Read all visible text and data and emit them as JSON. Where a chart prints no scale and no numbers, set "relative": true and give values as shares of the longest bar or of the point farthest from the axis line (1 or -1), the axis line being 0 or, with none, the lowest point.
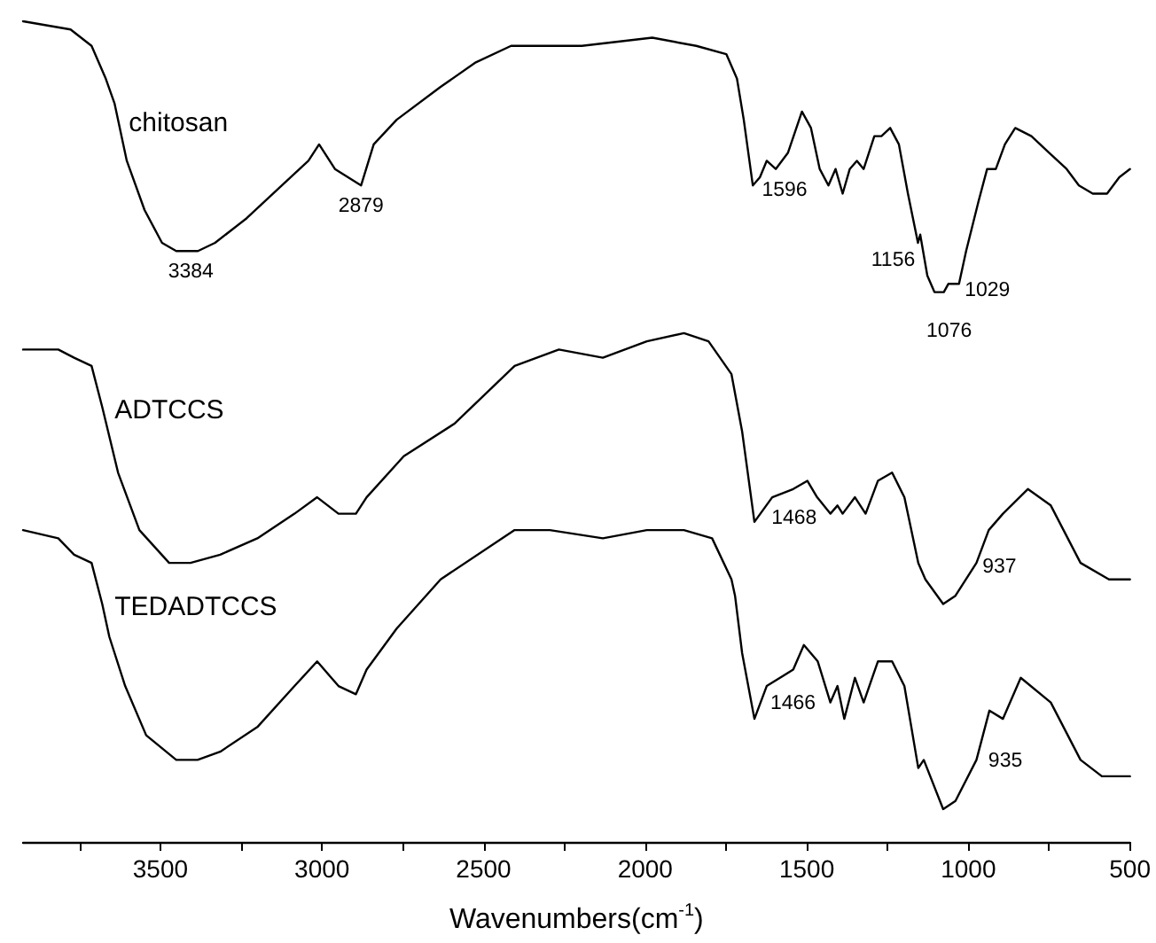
{
  "chart_data": {
    "type": "line",
    "relative": true,
    "xlabel": "Wavenumbers(cm$^{-1}$)",
    "xlim": [
      3925,
      500
    ],
    "xticks": [
      {
        "value": 3750,
        "label": null
      },
      3500,
      {
        "value": 3250,
        "label": null
      },
      3000,
      {
        "value": 2750,
        "label": null
      },
      2500,
      {
        "value": 2250,
        "label": null
      },
      2000,
      {
        "value": 1750,
        "label": null
      },
      1500,
      {
        "value": 1250,
        "label": null
      },
      1000,
      {
        "value": 750,
        "label": null
      },
      500
    ],
    "legend": false,
    "grid": false,
    "marker": "none",
    "line_style": "solid",
    "series": [
      {
        "name": "chitosan",
        "color": "#000000",
        "x": [
          3925,
          3778,
          3713,
          3669,
          3642,
          3604,
          3549,
          3495,
          3451,
          3384,
          3331,
          3233,
          3124,
          3042,
          3009,
          2960,
          2879,
          2840,
          2769,
          2633,
          2524,
          2415,
          2196,
          1978,
          1842,
          1749,
          1716,
          1695,
          1667,
          1645,
          1624,
          1596,
          1558,
          1515,
          1487,
          1460,
          1433,
          1411,
          1389,
          1367,
          1345,
          1324,
          1291,
          1269,
          1242,
          1215,
          1187,
          1156,
          1149,
          1127,
          1105,
          1076,
          1062,
          1029,
          1007,
          969,
          942,
          915,
          887,
          855,
          805,
          751,
          696,
          658,
          615,
          571,
          533,
          500
        ],
        "values": [
          1.0,
          0.99,
          0.97,
          0.93,
          0.9,
          0.83,
          0.77,
          0.73,
          0.72,
          0.72,
          0.73,
          0.76,
          0.8,
          0.83,
          0.85,
          0.82,
          0.8,
          0.85,
          0.88,
          0.92,
          0.95,
          0.97,
          0.97,
          0.98,
          0.97,
          0.96,
          0.93,
          0.88,
          0.8,
          0.81,
          0.83,
          0.82,
          0.84,
          0.89,
          0.87,
          0.82,
          0.8,
          0.82,
          0.79,
          0.82,
          0.83,
          0.82,
          0.86,
          0.86,
          0.87,
          0.85,
          0.79,
          0.73,
          0.74,
          0.69,
          0.67,
          0.67,
          0.68,
          0.68,
          0.72,
          0.78,
          0.82,
          0.82,
          0.85,
          0.87,
          0.86,
          0.84,
          0.82,
          0.8,
          0.79,
          0.79,
          0.81,
          0.82
        ]
      },
      {
        "name": "ADTCCS",
        "color": "#000000",
        "x": [
          3925,
          3816,
          3767,
          3713,
          3680,
          3631,
          3565,
          3473,
          3407,
          3315,
          3200,
          3085,
          3015,
          2949,
          2895,
          2862,
          2747,
          2589,
          2404,
          2267,
          2131,
          1995,
          1880,
          1804,
          1733,
          1700,
          1662,
          1607,
          1542,
          1498,
          1468,
          1427,
          1405,
          1389,
          1351,
          1318,
          1280,
          1236,
          1198,
          1155,
          1133,
          1078,
          1040,
          975,
          937,
          893,
          816,
          745,
          653,
          565,
          500
        ],
        "values": [
          0.6,
          0.6,
          0.59,
          0.58,
          0.53,
          0.45,
          0.38,
          0.34,
          0.34,
          0.35,
          0.37,
          0.4,
          0.42,
          0.4,
          0.4,
          0.42,
          0.47,
          0.51,
          0.58,
          0.6,
          0.59,
          0.61,
          0.62,
          0.61,
          0.57,
          0.5,
          0.39,
          0.42,
          0.43,
          0.44,
          0.42,
          0.4,
          0.41,
          0.4,
          0.42,
          0.4,
          0.44,
          0.45,
          0.42,
          0.34,
          0.32,
          0.29,
          0.3,
          0.34,
          0.38,
          0.4,
          0.43,
          0.41,
          0.34,
          0.32,
          0.32
        ]
      },
      {
        "name": "TEDADTCCS",
        "color": "#000000",
        "x": [
          3925,
          3816,
          3767,
          3713,
          3680,
          3658,
          3609,
          3544,
          3451,
          3385,
          3315,
          3200,
          3085,
          3015,
          2949,
          2895,
          2862,
          2769,
          2633,
          2404,
          2295,
          2131,
          1995,
          1880,
          1793,
          1733,
          1722,
          1700,
          1662,
          1624,
          1542,
          1509,
          1466,
          1427,
          1405,
          1384,
          1351,
          1324,
          1280,
          1236,
          1198,
          1155,
          1138,
          1078,
          1040,
          975,
          935,
          893,
          838,
          745,
          653,
          587,
          500
        ],
        "values": [
          0.38,
          0.37,
          0.35,
          0.34,
          0.29,
          0.25,
          0.19,
          0.13,
          0.1,
          0.1,
          0.11,
          0.14,
          0.19,
          0.22,
          0.19,
          0.18,
          0.21,
          0.26,
          0.32,
          0.38,
          0.38,
          0.37,
          0.38,
          0.38,
          0.37,
          0.32,
          0.3,
          0.23,
          0.15,
          0.19,
          0.21,
          0.24,
          0.22,
          0.17,
          0.19,
          0.15,
          0.2,
          0.17,
          0.22,
          0.22,
          0.19,
          0.09,
          0.1,
          0.04,
          0.05,
          0.1,
          0.16,
          0.15,
          0.2,
          0.17,
          0.1,
          0.08,
          0.08
        ]
      }
    ],
    "annotations": [
      {
        "text": "3384",
        "x": 3384,
        "y": 0.72
      },
      {
        "text": "2879",
        "x": 2879,
        "y": 0.8
      },
      {
        "text": "1596",
        "x": 1596,
        "y": 0.82
      },
      {
        "text": "1156",
        "x": 1156,
        "y": 0.73
      },
      {
        "text": "1029",
        "x": 1029,
        "y": 0.68
      },
      {
        "text": "1076",
        "x": 1076,
        "y": 0.67
      },
      {
        "text": "1468",
        "x": 1468,
        "y": 0.42
      },
      {
        "text": "937",
        "x": 937,
        "y": 0.38
      },
      {
        "text": "1466",
        "x": 1466,
        "y": 0.22
      },
      {
        "text": "935",
        "x": 935,
        "y": 0.15
      }
    ]
  }
}
